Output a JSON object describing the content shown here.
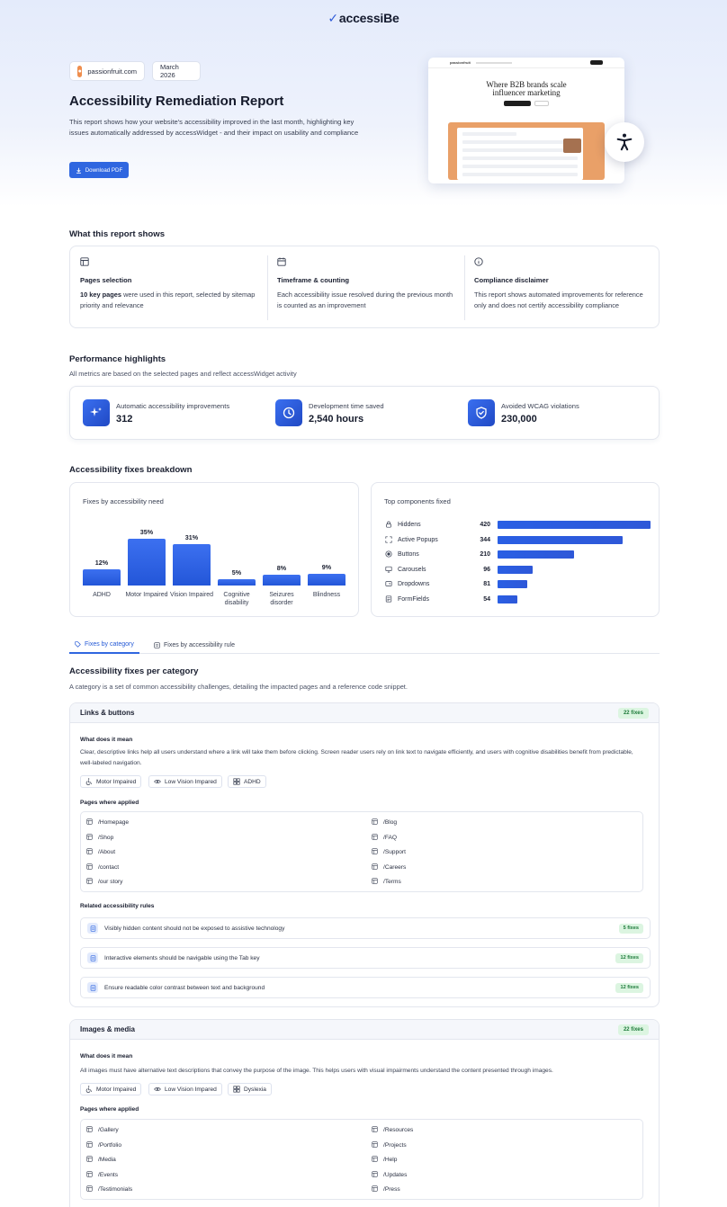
{
  "brand": {
    "name": "accessiBe"
  },
  "hero": {
    "site_chip": "passionfruit.com",
    "date_chip": "March 2026",
    "title": "Accessibility Remediation Report",
    "description": "This report shows how your website's accessibility improved in the last month, highlighting key issues automatically addressed by accessWidget - and their impact on usability and compliance",
    "download_label": "Download PDF",
    "preview": {
      "brand": "passionfruit",
      "headline_1": "Where B2B brands scale",
      "headline_2": "influencer marketing"
    }
  },
  "report_shows": {
    "title": "What this report shows",
    "columns": [
      {
        "icon": "layout-icon",
        "title": "Pages selection",
        "bold": "10 key pages",
        "text": " were used in this report, selected by sitemap priority and relevance"
      },
      {
        "icon": "calendar-icon",
        "title": "Timeframe & counting",
        "bold": "",
        "text": "Each accessibility issue resolved during the previous month is counted as an improvement"
      },
      {
        "icon": "info-icon",
        "title": "Compliance disclaimer",
        "bold": "",
        "text": "This report shows automated improvements for reference only and does not certify accessibility compliance"
      }
    ]
  },
  "performance": {
    "title": "Performance highlights",
    "subtitle": "All metrics are based on the selected pages and reflect accessWidget activity",
    "metrics": [
      {
        "icon": "sparkles-icon",
        "label": "Automatic accessibility improvements",
        "value": "312"
      },
      {
        "icon": "clock-icon",
        "label": "Development time saved",
        "value": "2,540 hours"
      },
      {
        "icon": "shield-check-icon",
        "label": "Avoided WCAG violations",
        "value": "230,000"
      }
    ]
  },
  "breakdown": {
    "title": "Accessibility fixes breakdown",
    "bar_card_label": "Fixes by accessibility need",
    "components_label": "Top components fixed"
  },
  "chart_data": [
    {
      "type": "bar",
      "categories": [
        "ADHD",
        "Motor Impaired",
        "Vision Impaired",
        "Cognitive disability",
        "Seizures disorder",
        "Blindness"
      ],
      "values": [
        12,
        35,
        31,
        5,
        8,
        9
      ],
      "value_labels": [
        "12%",
        "35%",
        "31%",
        "5%",
        "8%",
        "9%"
      ],
      "title": "Fixes by accessibility need",
      "ylim": [
        0,
        35
      ]
    },
    {
      "type": "bar",
      "orientation": "horizontal",
      "title": "Top components fixed",
      "categories": [
        "Hiddens",
        "Active Popups",
        "Buttons",
        "Carousels",
        "Dropdowns",
        "FormFields"
      ],
      "icons": [
        "lock-icon",
        "expand-icon",
        "radio-icon",
        "monitor-icon",
        "dropdown-icon",
        "form-icon"
      ],
      "values": [
        420,
        344,
        210,
        96,
        81,
        54
      ],
      "xlim": [
        0,
        420
      ]
    }
  ],
  "tabs": [
    {
      "label": "Fixes by category",
      "active": true
    },
    {
      "label": "Fixes by accessibility rule",
      "active": false
    }
  ],
  "per_category": {
    "title": "Accessibility fixes per category",
    "subtitle": "A category is a set of common accessibility challenges, detailing the impacted pages and a reference code snippet.",
    "what_label": "What does it mean",
    "pages_label": "Pages where applied",
    "rules_label": "Related accessibility rules",
    "categories": [
      {
        "name": "Links & buttons",
        "badge": "22 fixes",
        "meaning": "Clear, descriptive links help all users understand where a link will take them before clicking. Screen reader users rely on link text to navigate efficiently, and users with cognitive disabilities benefit from predictable, well-labeled navigation.",
        "tags": [
          {
            "icon": "wheelchair-icon",
            "label": "Motor Impaired"
          },
          {
            "icon": "eye-icon",
            "label": "Low Vision Impared"
          },
          {
            "icon": "grid-icon",
            "label": "ADHD"
          }
        ],
        "pages_left": [
          "/Homepage",
          "/Shop",
          "/About",
          "/contact",
          "/our story"
        ],
        "pages_right": [
          "/Blog",
          "/FAQ",
          "/Support",
          "/Careers",
          "/Terms"
        ],
        "rules": [
          {
            "text": "Visibly hidden content should not be exposed to assistive technology",
            "badge": "5 fixes"
          },
          {
            "text": "Interactive elements should be navigable using the Tab key",
            "badge": "12 fixes"
          },
          {
            "text": "Ensure readable color contrast between text and background",
            "badge": "12 fixes"
          }
        ]
      },
      {
        "name": "Images & media",
        "badge": "22 fixes",
        "meaning": "All images must have alternative text descriptions that convey the purpose of the image. This helps users with visual impairments understand the content presented through images.",
        "tags": [
          {
            "icon": "wheelchair-icon",
            "label": "Motor Impaired"
          },
          {
            "icon": "eye-icon",
            "label": "Low Vision Impared"
          },
          {
            "icon": "grid-icon",
            "label": "Dyslexia"
          }
        ],
        "pages_left": [
          "/Gallery",
          "/Portfolio",
          "/Media",
          "/Events",
          "/Testimonials"
        ],
        "pages_right": [
          "/Resources",
          "/Projects",
          "/Help",
          "/Updates",
          "/Press"
        ]
      }
    ]
  },
  "colors": {
    "accent": "#2f66e0",
    "badge_green_bg": "#dcf5e1",
    "badge_green_text": "#1d7a3a"
  }
}
